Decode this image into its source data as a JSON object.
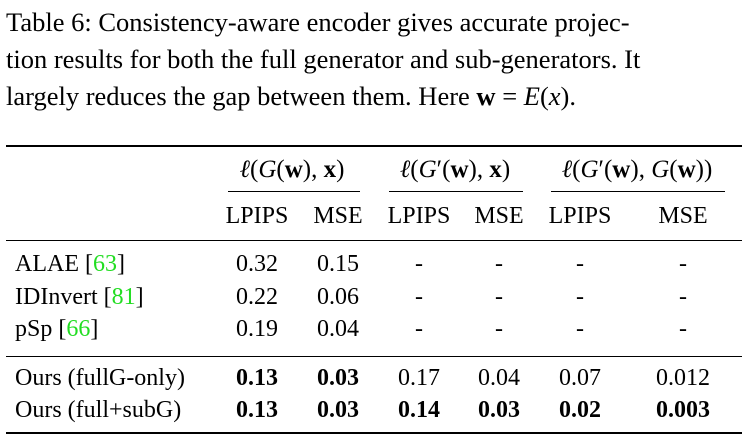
{
  "caption": {
    "lines": [
      "Table 6: Consistency-aware encoder gives accurate projec-",
      "tion results for both the full generator and sub-generators. It",
      "largely reduces the gap between them. Here"
    ],
    "formula_w": "w",
    "formula_eq": " = ",
    "formula_E": "E",
    "formula_open": "(",
    "formula_x": "x",
    "formula_close": ").",
    "space": " "
  },
  "table": {
    "groups": [
      {
        "l": "ℓ",
        "p1": "(",
        "g": "G",
        "prime": "",
        "p2": "(",
        "w": "w",
        "p3": "), ",
        "x": "x",
        "p4": ")"
      },
      {
        "l": "ℓ",
        "p1": "(",
        "g": "G",
        "prime": "′",
        "p2": "(",
        "w": "w",
        "p3": "), ",
        "x": "x",
        "p4": ")"
      },
      {
        "l": "ℓ",
        "p1": "(",
        "g": "G",
        "prime": "′",
        "p2": "(",
        "w": "w",
        "p3": "), ",
        "x": "G",
        "p4": "(",
        "w2": "w",
        "p5": "))"
      }
    ],
    "subheaders": [
      "LPIPS",
      "MSE",
      "LPIPS",
      "MSE",
      "LPIPS",
      "MSE"
    ],
    "rows": [
      {
        "method": "ALAE",
        "cite_open": " [",
        "cite": "63",
        "cite_close": "]",
        "values": [
          "0.32",
          "0.15",
          "-",
          "-",
          "-",
          "-"
        ]
      },
      {
        "method": "IDInvert",
        "cite_open": " [",
        "cite": "81",
        "cite_close": "]",
        "values": [
          "0.22",
          "0.06",
          "-",
          "-",
          "-",
          "-"
        ]
      },
      {
        "method": "pSp",
        "cite_open": " [",
        "cite": "66",
        "cite_close": "]",
        "values": [
          "0.19",
          "0.04",
          "-",
          "-",
          "-",
          "-"
        ]
      },
      {
        "method": "Ours (fullG-only)",
        "values": [
          "0.13",
          "0.03",
          "0.17",
          "0.04",
          "0.07",
          "0.012"
        ],
        "bold": [
          true,
          true,
          false,
          false,
          false,
          false
        ]
      },
      {
        "method": "Ours (full+subG)",
        "values": [
          "0.13",
          "0.03",
          "0.14",
          "0.03",
          "0.02",
          "0.003"
        ],
        "bold": [
          true,
          true,
          true,
          true,
          true,
          true
        ]
      }
    ]
  }
}
